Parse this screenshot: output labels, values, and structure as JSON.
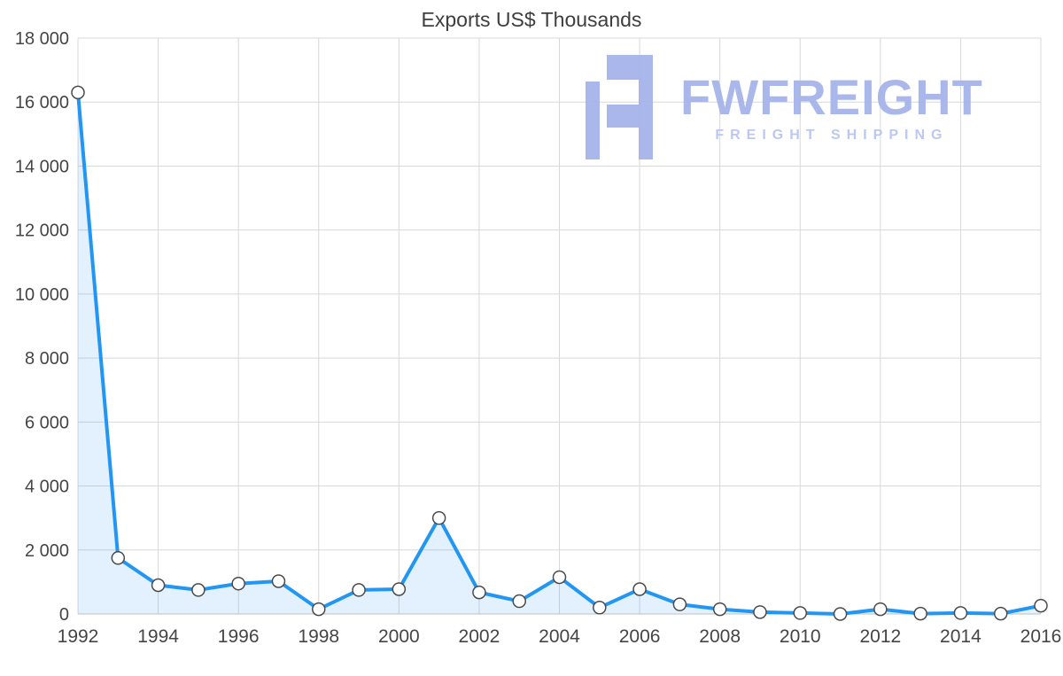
{
  "chart_data": {
    "type": "area",
    "title": "Exports US$ Thousands",
    "xlabel": "",
    "ylabel": "",
    "x": [
      1992,
      1993,
      1994,
      1995,
      1996,
      1997,
      1998,
      1999,
      2000,
      2001,
      2002,
      2003,
      2004,
      2005,
      2006,
      2007,
      2008,
      2009,
      2010,
      2011,
      2012,
      2013,
      2014,
      2015,
      2016
    ],
    "values": [
      16300,
      1750,
      900,
      750,
      950,
      1025,
      150,
      750,
      775,
      3000,
      675,
      400,
      1150,
      200,
      775,
      300,
      150,
      60,
      30,
      0,
      150,
      10,
      30,
      10,
      260
    ],
    "ylim": [
      0,
      18000
    ],
    "y_tick_step": 2000,
    "x_tick_step": 2,
    "grid": true,
    "legend": false,
    "y_tick_labels": [
      "0",
      "2 000",
      "4 000",
      "6 000",
      "8 000",
      "10 000",
      "12 000",
      "14 000",
      "16 000",
      "18 000"
    ],
    "x_tick_labels": [
      "1992",
      "1994",
      "1996",
      "1998",
      "2000",
      "2002",
      "2004",
      "2006",
      "2008",
      "2010",
      "2012",
      "2014",
      "2016"
    ]
  },
  "watermark": {
    "brand": "FWFREIGHT",
    "tagline": "FREIGHT SHIPPING"
  },
  "style": {
    "accent": "#2196f3",
    "area_fill": "rgba(33, 150, 243, 0.13)",
    "grid": "#d8d8d8",
    "axis": "#c0c0c0",
    "tick": "#454545",
    "title_color": "#3e3e3e",
    "marker_fill": "#ffffff",
    "marker_stroke": "#4a4a4a",
    "watermark_color": "#a6b4ea",
    "watermark_sub_color": "#b9c6f2",
    "background": "#ffffff"
  }
}
